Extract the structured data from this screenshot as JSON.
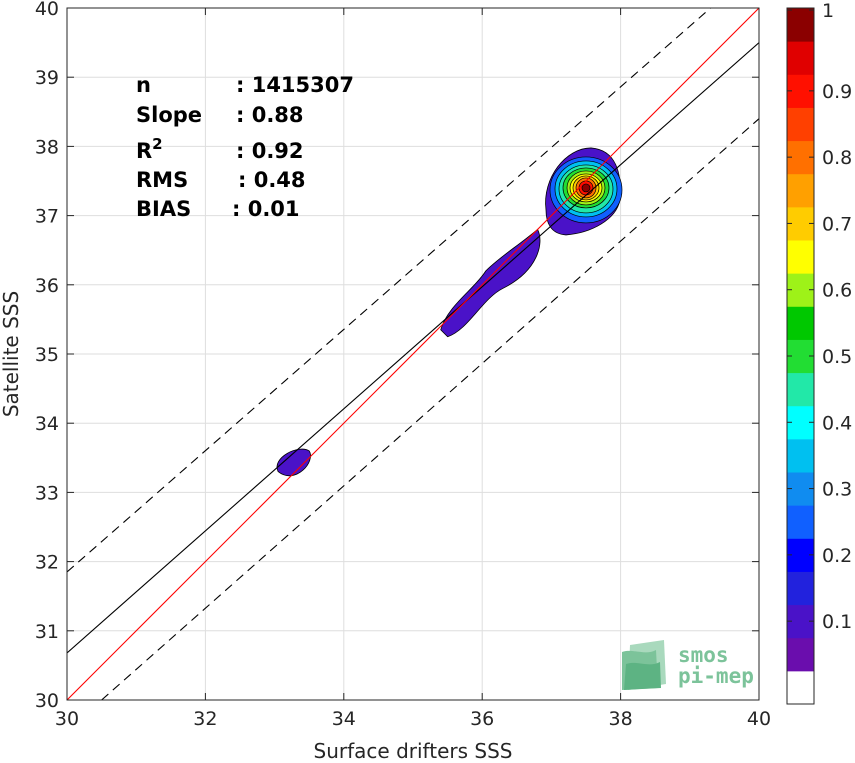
{
  "chart_data": {
    "type": "contour-density-scatter",
    "xlabel": "Surface drifters SSS",
    "ylabel": "Satellite SSS",
    "xlim": [
      30,
      40
    ],
    "ylim": [
      30,
      40
    ],
    "xticks": [
      "30",
      "32",
      "34",
      "36",
      "38",
      "40"
    ],
    "yticks": [
      "30",
      "31",
      "32",
      "33",
      "34",
      "35",
      "36",
      "37",
      "38",
      "39",
      "40"
    ],
    "grid": true,
    "stats": [
      {
        "label": "n",
        "value": ": 1415307"
      },
      {
        "label": "Slope",
        "value": ": 0.88"
      },
      {
        "label": "R",
        "sup": "2",
        "value": ": 0.92"
      },
      {
        "label": "RMS",
        "value": ": 0.48"
      },
      {
        "label": "BIAS",
        "value": ": 0.01"
      }
    ],
    "lines": {
      "identity": {
        "points": [
          [
            30,
            30
          ],
          [
            40,
            40
          ]
        ],
        "color": "#ff0000"
      },
      "regression": {
        "slope": 0.88,
        "points": [
          [
            30,
            30.68
          ],
          [
            40,
            39.5
          ]
        ],
        "color": "#000000"
      },
      "upper_dashed": {
        "points": [
          [
            30,
            31.85
          ],
          [
            39.3,
            40
          ]
        ],
        "color": "#000000"
      },
      "lower_dashed": {
        "points": [
          [
            30.5,
            30
          ],
          [
            40,
            38.4
          ]
        ],
        "color": "#000000"
      }
    },
    "density_regions": [
      {
        "level": 0.05,
        "center": [
          33.3,
          33.45
        ]
      },
      {
        "level": 0.05,
        "center": [
          36.1,
          36.0
        ]
      },
      {
        "level": 1.0,
        "center": [
          37.5,
          37.4
        ]
      }
    ],
    "colorbar": {
      "ticks": [
        "0.1",
        "0.2",
        "0.3",
        "0.4",
        "0.5",
        "0.6",
        "0.7",
        "0.8",
        "0.9",
        "1"
      ],
      "colors": [
        "#ffffff",
        "#6a0dad",
        "#4a12c8",
        "#2222dd",
        "#0000ff",
        "#1060ff",
        "#108cf0",
        "#00c0f0",
        "#00ffff",
        "#22e8a8",
        "#22dd33",
        "#00c800",
        "#9ef218",
        "#ffff00",
        "#ffcc00",
        "#ffa000",
        "#ff7000",
        "#ff4000",
        "#ff1000",
        "#e00000",
        "#8b0000"
      ]
    },
    "logo": {
      "line1": "smos",
      "line2": "pi-mep"
    }
  }
}
